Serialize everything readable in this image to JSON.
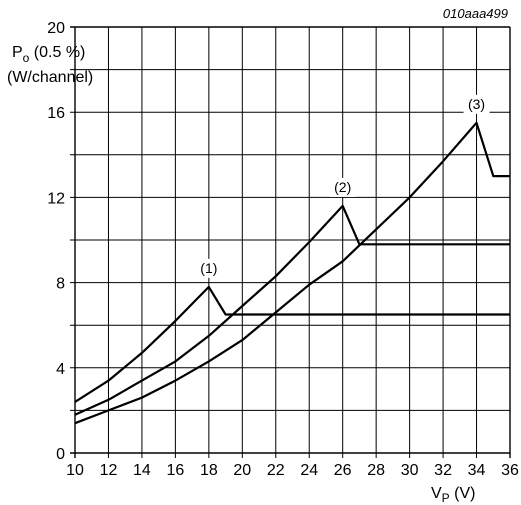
{
  "chart_data": {
    "type": "line",
    "figure_id": "010aaa499",
    "ylabel_main": "P",
    "ylabel_sub": "o",
    "ylabel_rest": " (0.5 %)",
    "ylabel_line2": "(W/channel)",
    "xlabel_main": "V",
    "xlabel_sub": "P",
    "xlabel_rest": " (V)",
    "xlim": [
      10,
      36
    ],
    "ylim": [
      0,
      20
    ],
    "x_ticks": [
      10,
      12,
      14,
      16,
      18,
      20,
      22,
      24,
      26,
      28,
      30,
      32,
      34,
      36
    ],
    "y_ticks": [
      0,
      4,
      8,
      12,
      16,
      20
    ],
    "y_grid_step": 2,
    "grid": true,
    "series": [
      {
        "name": "(1)",
        "x": [
          10,
          12,
          14,
          16,
          18,
          19,
          20,
          22,
          24,
          26,
          28,
          30,
          32,
          34,
          36
        ],
        "y": [
          2.4,
          3.4,
          4.7,
          6.2,
          7.8,
          6.5,
          6.5,
          6.5,
          6.5,
          6.5,
          6.5,
          6.5,
          6.5,
          6.5,
          6.5
        ]
      },
      {
        "name": "(2)",
        "x": [
          10,
          12,
          14,
          16,
          18,
          20,
          22,
          24,
          26,
          27,
          28,
          30,
          32,
          34,
          36
        ],
        "y": [
          1.8,
          2.5,
          3.4,
          4.3,
          5.5,
          6.9,
          8.3,
          9.9,
          11.6,
          9.8,
          9.8,
          9.8,
          9.8,
          9.8,
          9.8
        ]
      },
      {
        "name": "(3)",
        "x": [
          10,
          12,
          14,
          16,
          18,
          20,
          22,
          24,
          26,
          28,
          30,
          32,
          34,
          35,
          36
        ],
        "y": [
          1.4,
          2.0,
          2.6,
          3.4,
          4.3,
          5.3,
          6.6,
          7.9,
          9.0,
          10.5,
          12.0,
          13.7,
          15.5,
          13.0,
          13.0
        ]
      }
    ],
    "annotations": [
      {
        "text": "(1)",
        "x": 18,
        "y": 7.8
      },
      {
        "text": "(2)",
        "x": 26,
        "y": 11.6
      },
      {
        "text": "(3)",
        "x": 34,
        "y": 15.5
      }
    ],
    "colors": {
      "line": "#000000",
      "grid": "#000000",
      "background": "#ffffff"
    }
  }
}
